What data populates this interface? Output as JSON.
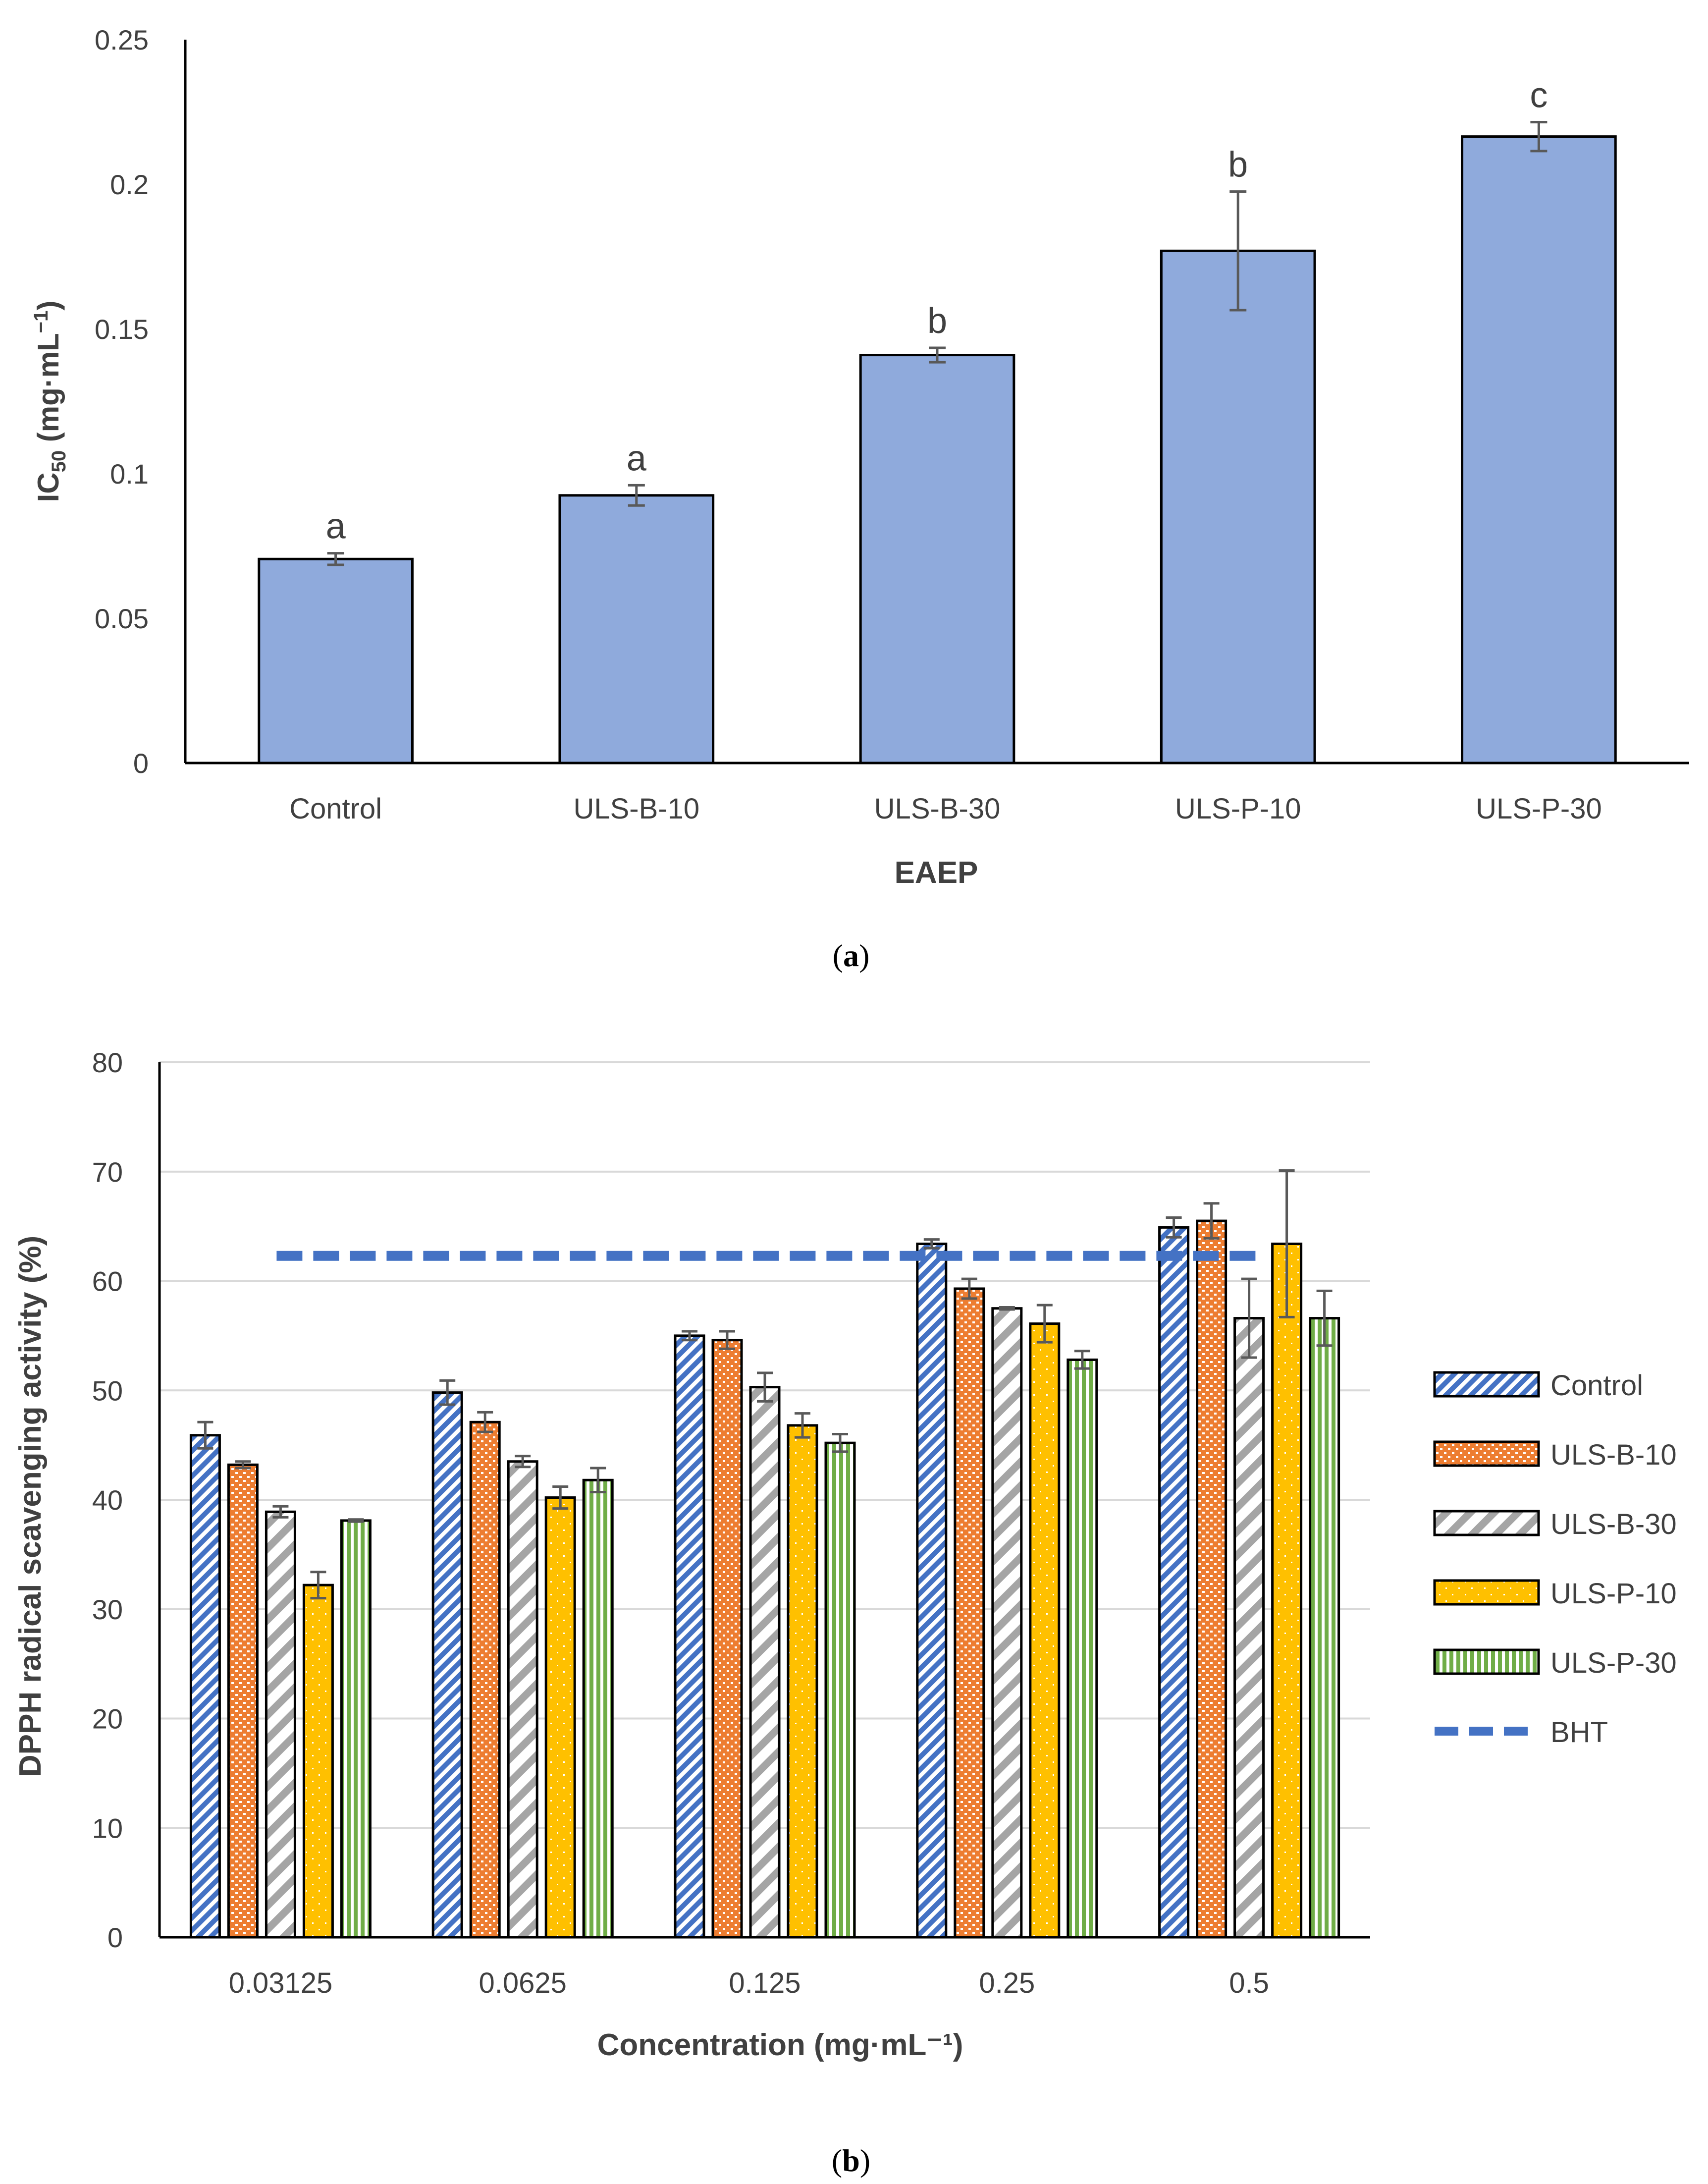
{
  "chart_data": [
    {
      "type": "bar",
      "panel_label": "a",
      "categories": [
        "Control",
        "ULS-B-10",
        "ULS-B-30",
        "ULS-P-10",
        "ULS-P-30"
      ],
      "values": [
        0.0705,
        0.0925,
        0.141,
        0.177,
        0.2165
      ],
      "errors": [
        0.002,
        0.0035,
        0.0025,
        0.0205,
        0.005
      ],
      "letters": [
        "a",
        "a",
        "b",
        "b",
        "c"
      ],
      "ylim": [
        0,
        0.25
      ],
      "yticks": [
        "0",
        "0.05",
        "0.1",
        "0.15",
        "0.2",
        "0.25"
      ],
      "ylabel_main": "IC",
      "ylabel_sub": "50",
      "ylabel_rest": " (mg·mL",
      "ylabel_sup": "−1",
      "ylabel_close": ")",
      "xlabel": "EAEP",
      "colors": {
        "bar": "#8faadc",
        "edge": "#000000",
        "error": "#595959",
        "axis": "#000000"
      }
    },
    {
      "type": "bar",
      "panel_label": "b",
      "categories": [
        "0.03125",
        "0.0625",
        "0.125",
        "0.25",
        "0.5"
      ],
      "series": [
        {
          "name": "Control",
          "values": [
            45.9,
            49.8,
            55.0,
            63.4,
            64.9
          ],
          "errors": [
            1.2,
            1.1,
            0.4,
            0.4,
            0.9
          ],
          "color": "#4472c4"
        },
        {
          "name": "ULS-B-10",
          "values": [
            43.2,
            47.1,
            54.6,
            59.3,
            65.5
          ],
          "errors": [
            0.3,
            0.9,
            0.8,
            0.9,
            1.6
          ],
          "color": "#ed7d31"
        },
        {
          "name": "ULS-B-30",
          "values": [
            38.9,
            43.5,
            50.3,
            57.5,
            56.6
          ],
          "errors": [
            0.5,
            0.5,
            1.3,
            0.1,
            3.6
          ],
          "color": "#a5a5a5"
        },
        {
          "name": "ULS-P-10",
          "values": [
            32.2,
            40.2,
            46.8,
            56.1,
            63.4
          ],
          "errors": [
            1.2,
            1.0,
            1.1,
            1.7,
            6.7
          ],
          "color": "#ffc000"
        },
        {
          "name": "ULS-P-30",
          "values": [
            38.1,
            41.8,
            45.2,
            52.8,
            56.6
          ],
          "errors": [
            0.1,
            1.1,
            0.8,
            0.8,
            2.5
          ],
          "color": "#70ad47"
        }
      ],
      "reference_line": {
        "name": "BHT",
        "value": 62.3,
        "color": "#4472c4"
      },
      "ylim": [
        0,
        80
      ],
      "yticks": [
        "0",
        "10",
        "20",
        "30",
        "40",
        "50",
        "60",
        "70",
        "80"
      ],
      "ylabel": "DPPH radical scavenging activity (%)",
      "xlabel": "Concentration (mg·mL⁻¹)",
      "grid": true,
      "legend_position": "right"
    }
  ]
}
